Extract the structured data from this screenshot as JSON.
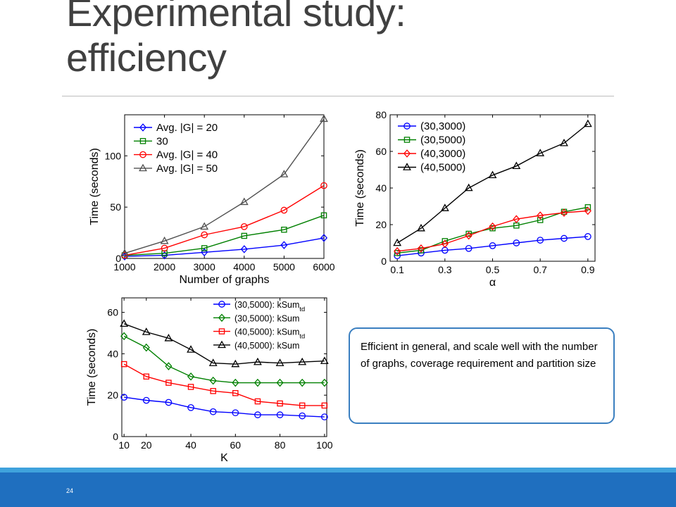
{
  "slide": {
    "title_line1": "Experimental study:",
    "title_line2": "efficiency",
    "callout_text": "Efficient in general, and scale well with the number of graphs,  coverage requirement  and partition size",
    "page_number": "24"
  },
  "colors": {
    "footer_bar": "#1f6fbf",
    "footer_stripe": "#3fa2dc",
    "callout_border": "#3a7fc0"
  },
  "chart_data": [
    {
      "type": "line",
      "xlabel": "Number of graphs",
      "ylabel": "Time (seconds)",
      "x": [
        1000,
        2000,
        3000,
        4000,
        5000,
        6000
      ],
      "xticks": [
        1000,
        2000,
        3000,
        4000,
        5000,
        6000
      ],
      "yticks": [
        0,
        50,
        100
      ],
      "xlim": [
        1000,
        6000
      ],
      "ylim": [
        0,
        140
      ],
      "legend_position": "top-left",
      "series": [
        {
          "name": "Avg. |G| = 20",
          "color": "#0000ff",
          "marker": "diamond",
          "values": [
            2,
            3,
            6,
            9,
            13,
            20
          ]
        },
        {
          "name": "30",
          "color": "#008000",
          "marker": "square",
          "values": [
            3,
            5,
            10,
            22,
            28,
            42
          ]
        },
        {
          "name": "Avg. |G| = 40",
          "color": "#ff0000",
          "marker": "circle",
          "values": [
            3,
            10,
            23,
            31,
            47,
            71
          ]
        },
        {
          "name": "Avg. |G| = 50",
          "color": "#505050",
          "marker": "triangle",
          "values": [
            5,
            17,
            31,
            55,
            82,
            136
          ]
        }
      ]
    },
    {
      "type": "line",
      "xlabel": "α",
      "ylabel": "Time (seconds)",
      "x": [
        0.1,
        0.2,
        0.3,
        0.4,
        0.5,
        0.6,
        0.7,
        0.8,
        0.9
      ],
      "xticks": [
        0.1,
        0.3,
        0.5,
        0.7,
        0.9
      ],
      "yticks": [
        0,
        20,
        40,
        60,
        80
      ],
      "xlim": [
        0.07,
        0.93
      ],
      "ylim": [
        0,
        80
      ],
      "legend_position": "top-left",
      "series": [
        {
          "name": "(30,3000)",
          "color": "#0000ff",
          "marker": "circle",
          "values": [
            3,
            4.5,
            6,
            7,
            8.5,
            10,
            11.5,
            12.5,
            13.5
          ]
        },
        {
          "name": "(30,5000)",
          "color": "#008000",
          "marker": "square",
          "values": [
            4.5,
            6,
            11,
            15,
            18,
            19.5,
            22.5,
            27,
            29.5
          ]
        },
        {
          "name": "(40,3000)",
          "color": "#ff0000",
          "marker": "diamond",
          "values": [
            5.5,
            7,
            9.5,
            14,
            19,
            23,
            25,
            26.5,
            27.5
          ]
        },
        {
          "name": "(40,5000)",
          "color": "#000000",
          "marker": "triangle",
          "values": [
            10,
            18,
            29,
            40,
            47,
            52,
            59,
            64.5,
            75
          ]
        }
      ]
    },
    {
      "type": "line",
      "xlabel": "K",
      "ylabel": "Time (seconds)",
      "x": [
        10,
        20,
        30,
        40,
        50,
        60,
        70,
        80,
        90,
        100
      ],
      "xticks": [
        10,
        20,
        40,
        60,
        80,
        100
      ],
      "yticks": [
        0,
        20,
        40,
        60
      ],
      "xlim": [
        9,
        101
      ],
      "ylim": [
        0,
        67
      ],
      "legend_position": "top-right",
      "series": [
        {
          "name": "(30,5000): kSum",
          "subscript": "td",
          "color": "#0000ff",
          "marker": "circle",
          "values": [
            19,
            17.5,
            16.5,
            14,
            12,
            11.5,
            10.5,
            10.5,
            10,
            9.5
          ]
        },
        {
          "name": "(30,5000): kSum",
          "color": "#008000",
          "marker": "diamond",
          "values": [
            48.5,
            43,
            34,
            29,
            27,
            26,
            26,
            26,
            26,
            26
          ]
        },
        {
          "name": "(40,5000): kSum",
          "subscript": "td",
          "color": "#ff0000",
          "marker": "square",
          "values": [
            35,
            29,
            26,
            24,
            22,
            21,
            17,
            16,
            15,
            15
          ]
        },
        {
          "name": "(40,5000): kSum",
          "color": "#000000",
          "marker": "triangle",
          "values": [
            54.5,
            50.5,
            47.5,
            42,
            35.5,
            35,
            36,
            35.5,
            36,
            36.5
          ]
        }
      ]
    }
  ]
}
